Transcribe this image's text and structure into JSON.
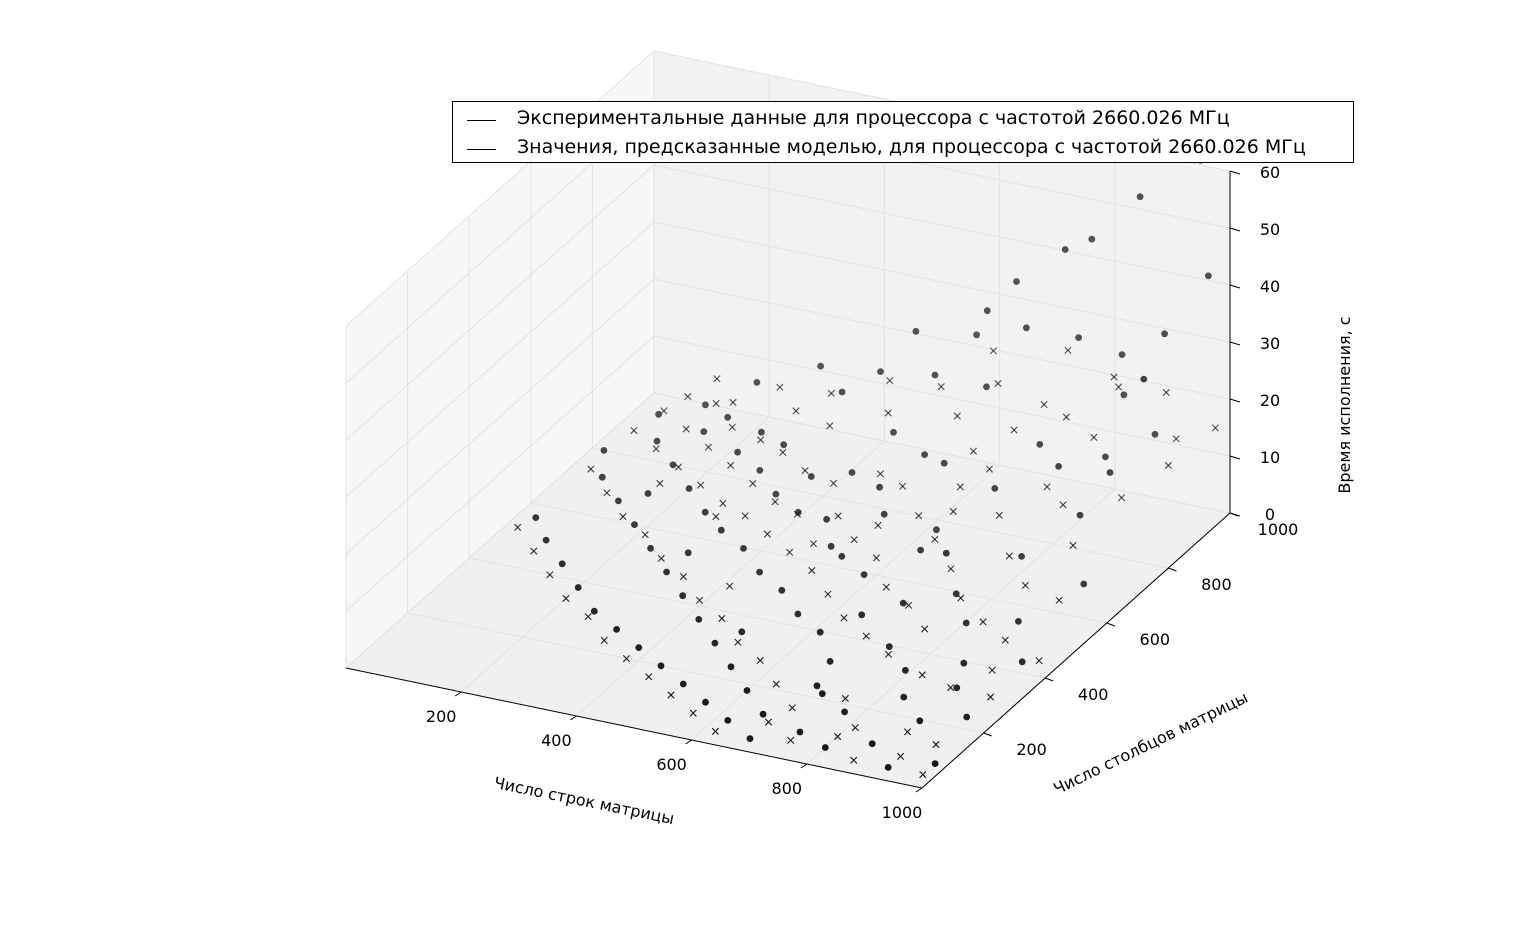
{
  "chart_data": {
    "type": "scatter",
    "projection": "3d",
    "xlabel": "Число строк матрицы",
    "ylabel": "Число столбцов матрицы",
    "zlabel": "Время исполнения, с",
    "xlim": [
      0,
      1000
    ],
    "ylim": [
      0,
      1000
    ],
    "zlim": [
      0,
      60
    ],
    "xticks": [
      "200",
      "400",
      "600",
      "800",
      "1000"
    ],
    "yticks": [
      "200",
      "400",
      "600",
      "800",
      "1000"
    ],
    "zticks": [
      "0",
      "10",
      "20",
      "30",
      "40",
      "50",
      "60"
    ],
    "grid": true,
    "legend_position": "top-right",
    "colors": {
      "pane_back": "#f2f2f2",
      "pane_side": "#f7f7f7",
      "pane_floor": "#f0f0f0",
      "grid": "#e2e2e2",
      "marker": "#111111"
    },
    "series": [
      {
        "name": "Экспериментальные данные для процессора с частотой 2660.026 МГц",
        "marker": "circle",
        "points": [
          [
            960,
            980,
            62
          ],
          [
            1000,
            930,
            45
          ],
          [
            860,
            970,
            54
          ],
          [
            1000,
            720,
            37
          ],
          [
            760,
            1000,
            43
          ],
          [
            730,
            970,
            42
          ],
          [
            940,
            900,
            35
          ],
          [
            640,
            980,
            34
          ],
          [
            700,
            900,
            31
          ],
          [
            850,
            930,
            28
          ],
          [
            600,
            960,
            29
          ],
          [
            560,
            1000,
            22
          ],
          [
            950,
            850,
            20
          ],
          [
            460,
            990,
            21
          ],
          [
            880,
            820,
            16
          ],
          [
            820,
            780,
            15
          ],
          [
            620,
            920,
            18
          ],
          [
            520,
            940,
            17
          ],
          [
            900,
            700,
            12
          ],
          [
            720,
            760,
            10
          ],
          [
            600,
            820,
            9
          ],
          [
            420,
            950,
            15
          ],
          [
            380,
            900,
            13
          ],
          [
            300,
            980,
            12
          ],
          [
            480,
            880,
            9
          ],
          [
            200,
            960,
            8
          ],
          [
            960,
            600,
            6
          ],
          [
            820,
            660,
            5
          ],
          [
            700,
            640,
            4
          ],
          [
            640,
            720,
            3
          ],
          [
            560,
            700,
            5
          ],
          [
            520,
            760,
            6
          ],
          [
            440,
            820,
            4
          ],
          [
            380,
            800,
            3
          ],
          [
            300,
            860,
            4
          ],
          [
            240,
            900,
            3
          ],
          [
            160,
            940,
            2
          ],
          [
            900,
            500,
            3
          ],
          [
            820,
            480,
            2
          ],
          [
            760,
            560,
            2
          ],
          [
            700,
            500,
            2
          ],
          [
            660,
            440,
            2
          ],
          [
            600,
            560,
            2
          ],
          [
            540,
            600,
            2
          ],
          [
            500,
            640,
            1
          ],
          [
            460,
            700,
            2
          ],
          [
            400,
            720,
            1
          ],
          [
            340,
            760,
            1
          ],
          [
            280,
            820,
            1
          ],
          [
            220,
            860,
            1
          ],
          [
            140,
            900,
            1
          ],
          [
            100,
            980,
            1
          ],
          [
            960,
            400,
            2
          ],
          [
            880,
            360,
            2
          ],
          [
            800,
            320,
            1
          ],
          [
            740,
            380,
            1
          ],
          [
            680,
            300,
            1
          ],
          [
            620,
            380,
            1
          ],
          [
            560,
            420,
            1
          ],
          [
            500,
            480,
            1
          ],
          [
            440,
            520,
            1
          ],
          [
            380,
            580,
            1
          ],
          [
            320,
            620,
            1
          ],
          [
            260,
            680,
            0
          ],
          [
            200,
            740,
            0
          ],
          [
            140,
            800,
            0
          ],
          [
            80,
            860,
            0
          ],
          [
            40,
            940,
            0
          ],
          [
            960,
            220,
            1
          ],
          [
            900,
            180,
            1
          ],
          [
            840,
            240,
            1
          ],
          [
            780,
            160,
            1
          ],
          [
            720,
            200,
            1
          ],
          [
            660,
            120,
            0
          ],
          [
            600,
            180,
            0
          ],
          [
            540,
            240,
            0
          ],
          [
            480,
            300,
            0
          ],
          [
            420,
            360,
            0
          ],
          [
            360,
            420,
            0
          ],
          [
            300,
            480,
            0
          ],
          [
            240,
            540,
            0
          ],
          [
            180,
            600,
            0
          ],
          [
            120,
            660,
            0
          ],
          [
            60,
            720,
            0
          ],
          [
            20,
            800,
            0
          ],
          [
            980,
            80,
            0
          ],
          [
            920,
            40,
            0
          ],
          [
            860,
            100,
            0
          ],
          [
            800,
            60,
            0
          ],
          [
            740,
            90,
            0
          ],
          [
            680,
            40,
            0
          ],
          [
            620,
            80,
            0
          ],
          [
            560,
            120,
            0
          ],
          [
            500,
            160,
            0
          ],
          [
            440,
            200,
            0
          ],
          [
            380,
            240,
            0
          ],
          [
            320,
            280,
            0
          ],
          [
            260,
            320,
            0
          ],
          [
            200,
            380,
            0
          ],
          [
            140,
            440,
            0
          ],
          [
            80,
            500,
            0
          ],
          [
            30,
            560,
            0
          ],
          [
            900,
            300,
            1
          ],
          [
            700,
            220,
            1
          ],
          [
            500,
            350,
            0
          ],
          [
            300,
            550,
            0
          ],
          [
            150,
            700,
            0
          ],
          [
            650,
            650,
            3
          ],
          [
            550,
            850,
            8
          ],
          [
            750,
            850,
            14
          ],
          [
            880,
            880,
            24
          ],
          [
            920,
            760,
            17
          ],
          [
            780,
            920,
            30
          ]
        ]
      },
      {
        "name": "Значения, предсказанные моделью, для процессора с частотой 2660.026 МГц",
        "marker": "x",
        "points": [
          [
            980,
            990,
            15
          ],
          [
            960,
            900,
            17
          ],
          [
            1000,
            800,
            18
          ],
          [
            900,
            980,
            20
          ],
          [
            860,
            900,
            24
          ],
          [
            940,
            760,
            13
          ],
          [
            820,
            960,
            22
          ],
          [
            780,
            880,
            18
          ],
          [
            740,
            960,
            25
          ],
          [
            700,
            860,
            15
          ],
          [
            640,
            920,
            19
          ],
          [
            600,
            980,
            21
          ],
          [
            920,
            640,
            10
          ],
          [
            860,
            720,
            12
          ],
          [
            800,
            780,
            11
          ],
          [
            760,
            700,
            9
          ],
          [
            700,
            780,
            12
          ],
          [
            640,
            840,
            11
          ],
          [
            580,
            900,
            13
          ],
          [
            520,
            960,
            14
          ],
          [
            460,
            900,
            11
          ],
          [
            420,
            980,
            12
          ],
          [
            380,
            860,
            9
          ],
          [
            340,
            940,
            10
          ],
          [
            300,
            900,
            8
          ],
          [
            240,
            960,
            8
          ],
          [
            180,
            920,
            6
          ],
          [
            120,
            980,
            6
          ],
          [
            960,
            520,
            7
          ],
          [
            880,
            560,
            6
          ],
          [
            820,
            620,
            7
          ],
          [
            740,
            580,
            5
          ],
          [
            680,
            640,
            6
          ],
          [
            620,
            700,
            6
          ],
          [
            560,
            760,
            7
          ],
          [
            500,
            800,
            6
          ],
          [
            440,
            760,
            5
          ],
          [
            380,
            780,
            5
          ],
          [
            320,
            820,
            5
          ],
          [
            260,
            860,
            4
          ],
          [
            200,
            880,
            4
          ],
          [
            140,
            940,
            4
          ],
          [
            80,
            960,
            3
          ],
          [
            1000,
            380,
            4
          ],
          [
            920,
            420,
            4
          ],
          [
            860,
            460,
            4
          ],
          [
            780,
            420,
            3
          ],
          [
            720,
            480,
            3
          ],
          [
            660,
            520,
            3
          ],
          [
            600,
            600,
            3
          ],
          [
            540,
            640,
            3
          ],
          [
            480,
            700,
            3
          ],
          [
            420,
            680,
            3
          ],
          [
            360,
            720,
            2
          ],
          [
            300,
            760,
            2
          ],
          [
            240,
            800,
            2
          ],
          [
            180,
            840,
            2
          ],
          [
            120,
            880,
            2
          ],
          [
            60,
            920,
            2
          ],
          [
            980,
            260,
            3
          ],
          [
            900,
            280,
            2
          ],
          [
            840,
            300,
            2
          ],
          [
            760,
            340,
            2
          ],
          [
            700,
            380,
            2
          ],
          [
            640,
            420,
            2
          ],
          [
            580,
            480,
            2
          ],
          [
            520,
            540,
            2
          ],
          [
            460,
            580,
            2
          ],
          [
            400,
            620,
            2
          ],
          [
            340,
            660,
            2
          ],
          [
            280,
            700,
            1
          ],
          [
            220,
            740,
            1
          ],
          [
            160,
            780,
            1
          ],
          [
            100,
            820,
            1
          ],
          [
            40,
            860,
            1
          ],
          [
            960,
            120,
            1
          ],
          [
            900,
            140,
            1
          ],
          [
            820,
            120,
            1
          ],
          [
            760,
            200,
            1
          ],
          [
            700,
            140,
            1
          ],
          [
            640,
            200,
            1
          ],
          [
            580,
            260,
            1
          ],
          [
            520,
            300,
            1
          ],
          [
            460,
            360,
            1
          ],
          [
            400,
            400,
            1
          ],
          [
            340,
            460,
            1
          ],
          [
            280,
            500,
            1
          ],
          [
            220,
            560,
            1
          ],
          [
            160,
            600,
            1
          ],
          [
            100,
            660,
            1
          ],
          [
            40,
            720,
            1
          ],
          [
            980,
            40,
            0
          ],
          [
            920,
            80,
            0
          ],
          [
            860,
            40,
            0
          ],
          [
            800,
            100,
            0
          ],
          [
            740,
            60,
            0
          ],
          [
            680,
            100,
            0
          ],
          [
            620,
            40,
            0
          ],
          [
            560,
            80,
            0
          ],
          [
            500,
            120,
            0
          ],
          [
            440,
            160,
            0
          ],
          [
            380,
            200,
            0
          ],
          [
            320,
            240,
            0
          ],
          [
            260,
            300,
            0
          ],
          [
            200,
            340,
            0
          ],
          [
            140,
            400,
            0
          ],
          [
            80,
            460,
            0
          ],
          [
            20,
            520,
            0
          ],
          [
            940,
            340,
            3
          ],
          [
            800,
            500,
            5
          ],
          [
            660,
            760,
            9
          ],
          [
            560,
            680,
            4
          ],
          [
            300,
            640,
            2
          ],
          [
            160,
            720,
            1
          ],
          [
            860,
            820,
            19
          ],
          [
            720,
            920,
            17
          ],
          [
            680,
            700,
            8
          ],
          [
            480,
            620,
            2
          ],
          [
            420,
            460,
            1
          ]
        ]
      }
    ]
  }
}
